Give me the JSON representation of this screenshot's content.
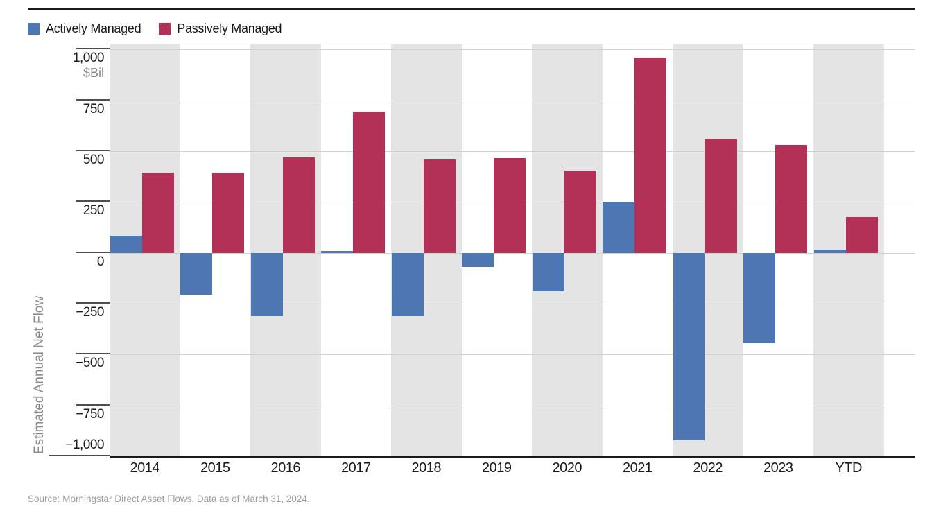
{
  "header": {
    "legend": [
      {
        "label": "Actively Managed",
        "color": "#4d76b2"
      },
      {
        "label": "Passively Managed",
        "color": "#b33157"
      }
    ]
  },
  "chart_data": {
    "type": "bar",
    "categories": [
      "2014",
      "2015",
      "2016",
      "2017",
      "2018",
      "2019",
      "2020",
      "2021",
      "2022",
      "2023",
      "YTD"
    ],
    "series": [
      {
        "name": "Actively Managed",
        "color": "#4d76b2",
        "values": [
          85,
          -205,
          -310,
          10,
          -310,
          -70,
          -190,
          250,
          -920,
          -445,
          15
        ]
      },
      {
        "name": "Passively Managed",
        "color": "#b33157",
        "values": [
          395,
          395,
          470,
          695,
          460,
          465,
          405,
          960,
          560,
          530,
          175
        ]
      }
    ],
    "title": "",
    "xlabel": "",
    "ylabel": "Estimated Annual Net Flow",
    "unit_label": "$Bil",
    "ylim": [
      -1000,
      1025
    ],
    "yticks": [
      {
        "value": 1000,
        "label": "1,000"
      },
      {
        "value": 750,
        "label": "750"
      },
      {
        "value": 500,
        "label": "500"
      },
      {
        "value": 250,
        "label": "250"
      },
      {
        "value": 0,
        "label": "0"
      },
      {
        "value": -250,
        "label": "−250"
      },
      {
        "value": -500,
        "label": "−500"
      },
      {
        "value": -750,
        "label": "−750"
      },
      {
        "value": -1000,
        "label": "−1,000"
      }
    ],
    "grid": true,
    "band_fill_color": "#e4e4e4",
    "banded_category_indices": [
      0,
      2,
      4,
      6,
      8,
      10
    ],
    "legend_position": "top-left"
  },
  "footer": {
    "source": "Source: Morningstar Direct Asset Flows. Data as of March 31, 2024."
  }
}
